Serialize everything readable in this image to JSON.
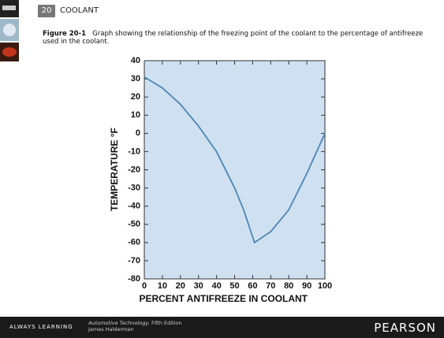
{
  "header": {
    "number": "20",
    "title": "COOLANT"
  },
  "caption": {
    "label": "Figure 20-1",
    "text": "Graph showing the relationship of the freezing point of the coolant to the percentage of antifreeze used in the coolant."
  },
  "footer": {
    "brand_tag": "ALWAYS LEARNING",
    "book": "Automotive Technology,",
    "edition": "Fifth Edition",
    "author": "James Halderman",
    "publisher": "PEARSON"
  },
  "chart_data": {
    "type": "line",
    "xlabel": "PERCENT ANTIFREEZE IN COOLANT",
    "ylabel": "TEMPERATURE °F",
    "x": [
      0,
      10,
      20,
      30,
      40,
      50,
      55,
      61,
      70,
      80,
      90,
      100
    ],
    "series": [
      {
        "color": "#4a86b4",
        "values": [
          31,
          25,
          16,
          4,
          -10,
          -30,
          -42,
          -60,
          -54,
          -42,
          -22,
          0
        ]
      }
    ],
    "xlim": [
      0,
      100
    ],
    "xticks": [
      0,
      10,
      20,
      30,
      40,
      50,
      60,
      70,
      80,
      90,
      100
    ],
    "ylim": [
      -80,
      40
    ],
    "yticks": [
      40,
      30,
      20,
      10,
      0,
      -10,
      -20,
      -30,
      -40,
      -50,
      -60,
      -70,
      -80
    ],
    "plot_background": "#cfe0f1",
    "grid": false
  }
}
